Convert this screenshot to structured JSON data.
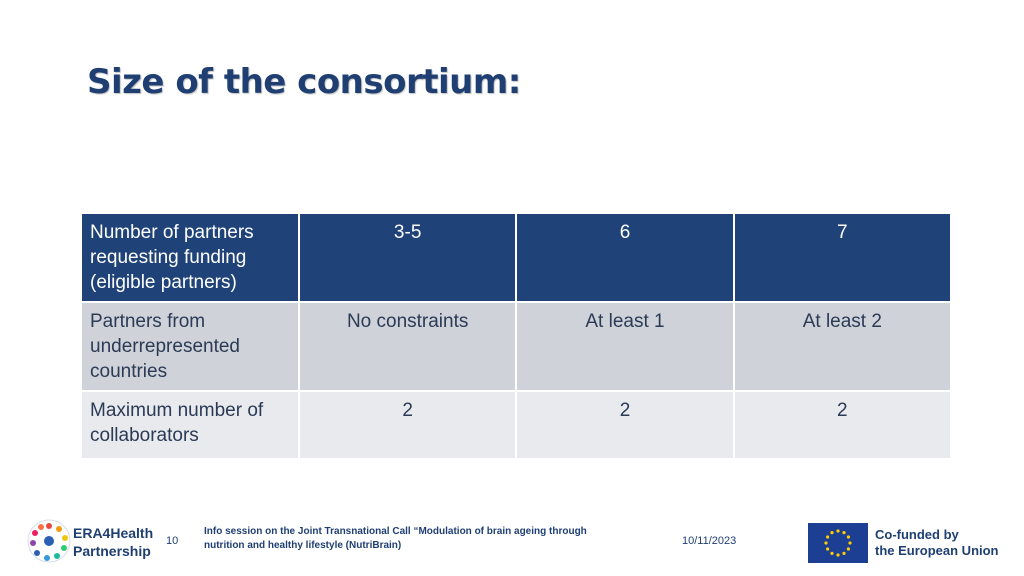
{
  "slide": {
    "title": "Size of the consortium:"
  },
  "table": {
    "header": {
      "label": "Number of partners requesting funding (eligible partners)",
      "values": [
        "3-5",
        "6",
        "7"
      ]
    },
    "rows": [
      {
        "label": "Partners from underrepresented countries",
        "values": [
          "No constraints",
          "At least 1",
          "At least 2"
        ]
      },
      {
        "label": "Maximum number of collaborators",
        "values": [
          "2",
          "2",
          "2"
        ]
      }
    ]
  },
  "footer": {
    "brand_line1": "ERA4Health",
    "brand_line2": "Partnership",
    "slide_number": "10",
    "event_text": "Info session on the Joint Transnational Call “Modulation of brain ageing through nutrition and healthy lifestyle (NutriBrain)",
    "date": "10/11/2023",
    "eu_line1": "Co-funded by",
    "eu_line2": "the European Union"
  },
  "colors": {
    "header_bg": "#1f4379",
    "row1_bg": "#cfd3d9",
    "row2_bg": "#e8eaee",
    "title": "#1f3f73",
    "eu_blue": "#1c3f94",
    "eu_star": "#ffcc00"
  }
}
